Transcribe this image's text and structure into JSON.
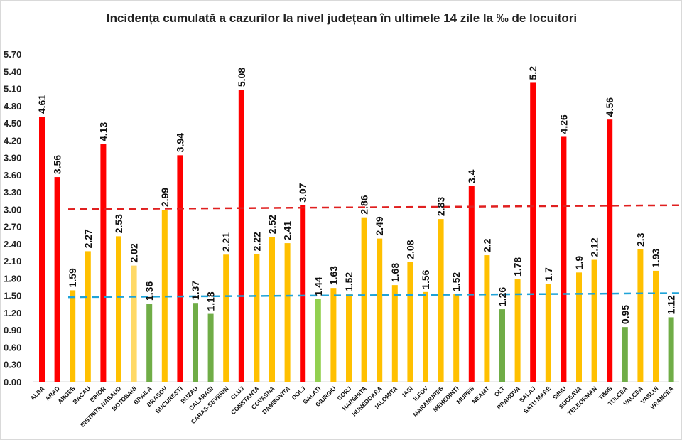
{
  "chart_data": {
    "type": "bar",
    "title": "Incidența cumulată a cazurilor la nivel județean în ultimele 14 zile la ‰ de locuitori",
    "xlabel": "",
    "ylabel": "",
    "ylim": [
      0,
      5.7
    ],
    "yticks": [
      "0.00",
      "0.30",
      "0.60",
      "0.90",
      "1.20",
      "1.50",
      "1.80",
      "2.10",
      "2.40",
      "2.70",
      "3.00",
      "3.30",
      "3.60",
      "3.90",
      "4.20",
      "4.50",
      "4.80",
      "5.10",
      "5.40",
      "5.70"
    ],
    "grid": false,
    "colors": {
      "red": "#ff0000",
      "yellow": "#ffc000",
      "light_yellow": "#ffd966",
      "green": "#70ad47",
      "light_green": "#92d050"
    },
    "categories": [
      "ALBA",
      "ARAD",
      "ARGES",
      "BACAU",
      "BIHOR",
      "BISTRITA NASAUD",
      "BOTOSANI",
      "BRAILA",
      "BRASOV",
      "BUCURESTI",
      "BUZAU",
      "CALARASI",
      "CARAS-SEVERIN",
      "CLUJ",
      "CONSTANTA",
      "COVASNA",
      "DAMBOVITA",
      "DOLJ",
      "GALATI",
      "GIURGIU",
      "GORJ",
      "HARGHITA",
      "HUNEDOARA",
      "IALOMITA",
      "IASI",
      "ILFOV",
      "MARAMURES",
      "MEHEDINTI",
      "MURES",
      "NEAMT",
      "OLT",
      "PRAHOVA",
      "SALAJ",
      "SATU MARE",
      "SIBIU",
      "SUCEAVA",
      "TELEORMAN",
      "TIMIS",
      "TULCEA",
      "VALCEA",
      "VASLUI",
      "VRANCEA"
    ],
    "values": [
      4.61,
      3.56,
      1.59,
      2.27,
      4.13,
      2.53,
      2.02,
      1.36,
      2.99,
      3.94,
      1.37,
      1.18,
      2.21,
      5.08,
      2.22,
      2.52,
      2.41,
      3.07,
      1.44,
      1.63,
      1.52,
      2.86,
      2.49,
      1.68,
      2.08,
      1.56,
      2.83,
      1.52,
      3.4,
      2.2,
      1.26,
      1.78,
      5.2,
      1.7,
      4.26,
      1.9,
      2.12,
      4.56,
      0.95,
      2.3,
      1.93,
      1.12
    ],
    "data_labels": [
      "4.61",
      "3.56",
      "1.59",
      "2.27",
      "4.13",
      "2.53",
      "2.02",
      "1.36",
      "2.99",
      "3.94",
      "1.37",
      "1.18",
      "2.21",
      "5.08",
      "2.22",
      "2.52",
      "2.41",
      "3.07",
      "1.44",
      "1.63",
      "1.52",
      "2.86",
      "2.49",
      "1.68",
      "2.08",
      "1.56",
      "2.83",
      "1.52",
      "3.4",
      "2.2",
      "1.26",
      "1.78",
      "5.2",
      "1.7",
      "4.26",
      "1.9",
      "2.12",
      "4.56",
      "0.95",
      "2.3",
      "1.93",
      "1.12"
    ],
    "bar_colors": [
      "red",
      "red",
      "yellow",
      "yellow",
      "red",
      "yellow",
      "light_yellow",
      "green",
      "yellow",
      "red",
      "green",
      "green",
      "yellow",
      "red",
      "yellow",
      "yellow",
      "yellow",
      "red",
      "light_green",
      "yellow",
      "yellow",
      "yellow",
      "yellow",
      "yellow",
      "yellow",
      "yellow",
      "yellow",
      "yellow",
      "red",
      "yellow",
      "green",
      "yellow",
      "red",
      "yellow",
      "red",
      "yellow",
      "yellow",
      "red",
      "green",
      "yellow",
      "yellow",
      "green"
    ],
    "reference_lines": [
      {
        "style": "dashed",
        "color": "#e02020",
        "from": 3.0,
        "to": 3.07
      },
      {
        "style": "dashed",
        "color": "#1fa3d8",
        "from": 1.47,
        "to": 1.54
      }
    ]
  }
}
